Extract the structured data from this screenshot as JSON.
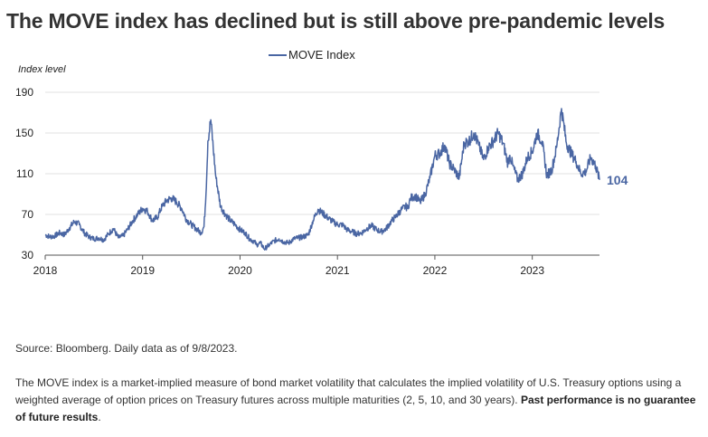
{
  "title": "The MOVE index has declined but is still above pre-pandemic levels",
  "footer": {
    "source": "Source: Bloomberg. Daily data as of 9/8/2023.",
    "note_text": "The MOVE index is a market-implied measure of bond market volatility that calculates the implied volatility of U.S. Treasury options using a weighted average of option prices on Treasury futures across multiple maturities (2, 5, 10, and 30 years).",
    "note_bold": "Past performance is no guarantee of future results",
    "note_end": "."
  },
  "colors": {
    "series": "#4a66a3",
    "grid": "#e2e2e2",
    "axis": "#555555"
  },
  "chart_data": {
    "type": "line",
    "title": "The MOVE index has declined but is still above pre-pandemic levels",
    "ylabel": "Index level",
    "xlabel": "",
    "ylim": [
      30,
      190
    ],
    "yticks": [
      30,
      70,
      110,
      150,
      190
    ],
    "xlim": [
      2018.0,
      2023.69
    ],
    "xticks": [
      2018,
      2019,
      2020,
      2021,
      2022,
      2023
    ],
    "legend": {
      "position": "top-center",
      "entries": [
        "MOVE Index"
      ]
    },
    "grid": true,
    "end_label": "104",
    "series": [
      {
        "name": "MOVE Index",
        "x": [
          2018.0,
          2018.05,
          2018.1,
          2018.15,
          2018.2,
          2018.25,
          2018.3,
          2018.35,
          2018.4,
          2018.45,
          2018.5,
          2018.55,
          2018.6,
          2018.65,
          2018.7,
          2018.75,
          2018.8,
          2018.85,
          2018.9,
          2018.95,
          2019.0,
          2019.05,
          2019.1,
          2019.15,
          2019.2,
          2019.25,
          2019.3,
          2019.35,
          2019.4,
          2019.45,
          2019.5,
          2019.55,
          2019.6,
          2019.63,
          2019.65,
          2019.67,
          2019.7,
          2019.75,
          2019.8,
          2019.85,
          2019.9,
          2019.95,
          2020.0,
          2020.05,
          2020.1,
          2020.15,
          2020.17,
          2020.19,
          2020.21,
          2020.25,
          2020.3,
          2020.35,
          2020.4,
          2020.45,
          2020.5,
          2020.55,
          2020.6,
          2020.65,
          2020.7,
          2020.75,
          2020.8,
          2020.85,
          2020.9,
          2020.95,
          2021.0,
          2021.05,
          2021.1,
          2021.15,
          2021.2,
          2021.25,
          2021.3,
          2021.35,
          2021.4,
          2021.45,
          2021.5,
          2021.55,
          2021.6,
          2021.65,
          2021.7,
          2021.72,
          2021.75,
          2021.8,
          2021.85,
          2021.9,
          2021.95,
          2022.0,
          2022.05,
          2022.1,
          2022.15,
          2022.2,
          2022.25,
          2022.3,
          2022.35,
          2022.4,
          2022.45,
          2022.5,
          2022.55,
          2022.6,
          2022.65,
          2022.7,
          2022.75,
          2022.77,
          2022.8,
          2022.85,
          2022.9,
          2022.95,
          2023.0,
          2023.05,
          2023.1,
          2023.15,
          2023.2,
          2023.25,
          2023.3,
          2023.35,
          2023.4,
          2023.45,
          2023.5,
          2023.55,
          2023.6,
          2023.65,
          2023.69
        ],
        "y": [
          50,
          48,
          49,
          52,
          50,
          57,
          63,
          60,
          52,
          48,
          46,
          47,
          45,
          51,
          56,
          47,
          49,
          56,
          64,
          70,
          76,
          73,
          64,
          67,
          78,
          84,
          86,
          82,
          76,
          65,
          60,
          56,
          52,
          58,
          90,
          142,
          163,
          108,
          78,
          70,
          64,
          60,
          55,
          52,
          46,
          43,
          40,
          41,
          42,
          36,
          40,
          44,
          46,
          43,
          42,
          46,
          47,
          48,
          50,
          64,
          75,
          71,
          67,
          63,
          60,
          60,
          55,
          53,
          51,
          52,
          56,
          59,
          55,
          53,
          56,
          63,
          68,
          74,
          78,
          76,
          86,
          88,
          82,
          90,
          106,
          128,
          130,
          138,
          120,
          114,
          106,
          140,
          142,
          150,
          138,
          124,
          136,
          142,
          150,
          140,
          120,
          128,
          118,
          104,
          110,
          126,
          132,
          150,
          142,
          108,
          114,
          136,
          174,
          140,
          130,
          122,
          110,
          112,
          126,
          118,
          104
        ]
      }
    ]
  }
}
